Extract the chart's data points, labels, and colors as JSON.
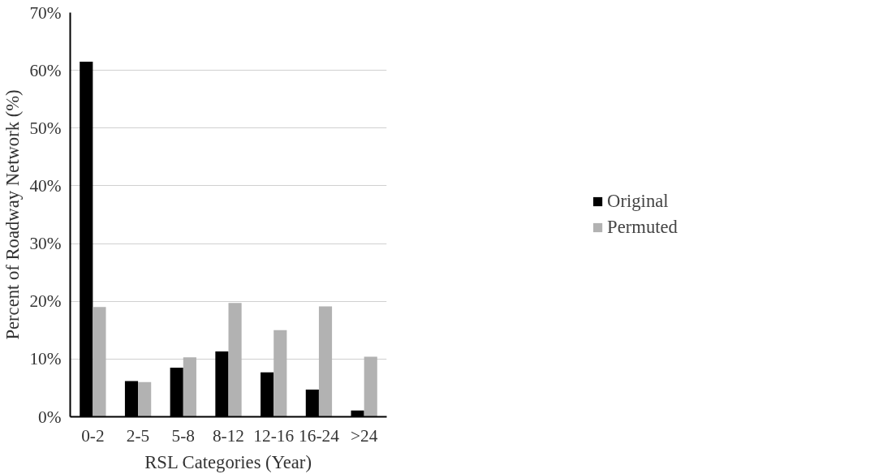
{
  "chart_data": {
    "type": "bar",
    "xlabel": "RSL Categories (Year)",
    "ylabel": "Percent of Roadway Network (%)",
    "categories": [
      "0-2",
      "2-5",
      "5-8",
      "8-12",
      "12-16",
      "16-24",
      ">24"
    ],
    "series": [
      {
        "name": "Original",
        "color": "#000000",
        "values": [
          61.5,
          6.2,
          8.5,
          11.3,
          7.7,
          4.7,
          1.1
        ]
      },
      {
        "name": "Permuted",
        "color": "#b2b2b2",
        "values": [
          19.0,
          6.0,
          10.3,
          19.7,
          15.0,
          19.1,
          10.4
        ]
      }
    ],
    "ylim": [
      0,
      70
    ],
    "yticks": [
      {
        "value": 0,
        "label": "0%"
      },
      {
        "value": 10,
        "label": "10%"
      },
      {
        "value": 20,
        "label": "20%"
      },
      {
        "value": 30,
        "label": "30%"
      },
      {
        "value": 40,
        "label": "40%"
      },
      {
        "value": 50,
        "label": "50%"
      },
      {
        "value": 60,
        "label": "60%"
      },
      {
        "value": 70,
        "label": "70%"
      }
    ],
    "grid": "y",
    "legend": "right"
  }
}
